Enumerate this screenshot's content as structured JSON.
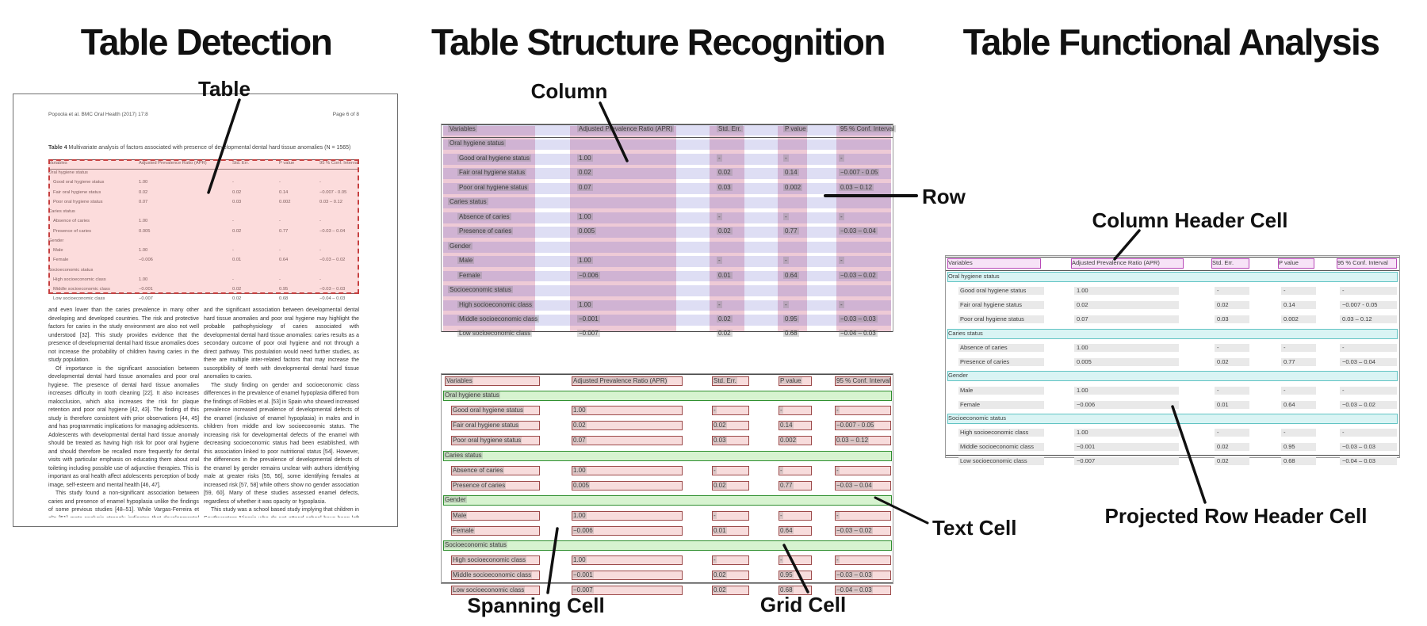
{
  "titles": {
    "left": "Table Detection",
    "middle": "Table Structure Recognition",
    "right": "Table Functional Analysis"
  },
  "annotations": {
    "table": "Table",
    "column": "Column",
    "row": "Row",
    "spanning_cell": "Spanning Cell",
    "text_cell": "Text Cell",
    "grid_cell": "Grid Cell",
    "column_header_cell": "Column Header Cell",
    "projected_row_header_cell": "Projected Row Header Cell"
  },
  "document": {
    "running_header_left": "Popoola et al. BMC Oral Health  (2017) 17:8",
    "running_header_right": "Page 6 of 8",
    "caption_label": "Table 4",
    "caption_text": " Multivariate analysis of factors associated with presence of developmental dental hard tissue anomalies (N = 1565)",
    "body_left": [
      "and even lower than the caries prevalence in many other developing and developed countries. The risk and protective factors for caries in the study environment are also not well understood [32]. This study provides evidence that the presence of developmental dental hard tissue anomalies does not increase the probability of children having caries in the study population.",
      "Of importance is the significant association between developmental dental hard tissue anomalies and poor oral hygiene. The presence of dental hard tissue anomalies increases difficulty in tooth cleaning [22]. It also increases malocclusion, which also increases the risk for plaque retention and poor oral hygiene [42, 43]. The finding of this study is therefore consistent with prior observations [44, 45] and has programmatic implications for managing adolescents. Adolescents with developmental dental hard tissue anomaly should be treated as having high risk for poor oral hygiene and should therefore be recalled more frequently for dental visits with particular emphasis on educating them about oral toileting including possible use of adjunctive therapies. This is important as oral health affect adolescents perception of body image, self-esteem and mental health [46, 47].",
      "This study found a non-significant association between caries and presence of enamel hypoplasia unlike the findings of some previous studies [48–51]. While Vargas-Ferreira et al's [51] meta-analysis strongly indicates that developmental defects of the enamel such as enamel hypoplasia is a risk factor for caries, this study finding indicates that enamel hypoplasia is not a risk factor for caries in the study population from a sub-urban developing country where the caries prevalence and severity is low [52]. However, the non-significant association between developmental dental hard tissue anomalies and caries"
    ],
    "body_right": [
      "and the significant association between developmental dental hard tissue anomalies and poor oral hygiene may highlight the probable pathophysiology of caries associated with developmental dental hard tissue anomalies: caries results as a secondary outcome of poor oral hygiene and not through a direct pathway. This postulation would need further studies, as there are multiple inter-related factors that may increase the susceptibility of teeth with developmental dental hard tissue anomalies to caries.",
      "The study finding on gender and socioeconomic class differences in the prevalence of enamel hypoplasia differed from the findings of Robles et al. [53] in Spain who showed increased prevalence increased prevalence of developmental defects of the enamel (inclusive of enamel hypoplasia) in males and in children from middle and low socioeconomic status. The increasing risk for developmental defects of the enamel with decreasing socioeconomic status had been established, with this association linked to poor nutritional status [54]. However, the differences in the prevalence of developmental defects of the enamel by gender remains unclear with authors identifying male at greater risks [55, 56], some identifying females at increased risk [57, 58] while others show no gender association [59, 60]. Many of these studies assessed enamel defects, regardless of whether it was opacity or hypoplasia.",
      "This study was a school based study implying that children in Southwestern Nigeria who do not attend school have been left out of this survey as reports show that a high proportion of children in Nigeria are out of school [61]. This limits the generalizability of the study finding. However, within the limits of the design of the study, the data still provides useful information highlighting the prevalence of developmental dental hard tissue"
    ]
  },
  "table": {
    "columns": [
      "Variables",
      "Adjusted Prevalence Ratio (APR)",
      "Std. Err.",
      "P value",
      "95 % Conf. Interval"
    ],
    "rows": [
      {
        "section": true,
        "label": "Oral hygiene status"
      },
      {
        "indent": true,
        "label": "Good oral hygiene status",
        "apr": "1.00",
        "se": "-",
        "p": "-",
        "ci": "-"
      },
      {
        "indent": true,
        "label": "Fair oral hygiene status",
        "apr": "0.02",
        "se": "0.02",
        "p": "0.14",
        "ci": "−0.007 - 0.05"
      },
      {
        "indent": true,
        "label": "Poor oral hygiene status",
        "apr": "0.07",
        "se": "0.03",
        "p": "0.002",
        "ci": "0.03 – 0.12"
      },
      {
        "section": true,
        "label": "Caries status"
      },
      {
        "indent": true,
        "label": "Absence of caries",
        "apr": "1.00",
        "se": "-",
        "p": "-",
        "ci": "-"
      },
      {
        "indent": true,
        "label": "Presence of caries",
        "apr": "0.005",
        "se": "0.02",
        "p": "0.77",
        "ci": "−0.03 – 0.04"
      },
      {
        "section": true,
        "label": "Gender"
      },
      {
        "indent": true,
        "label": "Male",
        "apr": "1.00",
        "se": "-",
        "p": "-",
        "ci": "-"
      },
      {
        "indent": true,
        "label": "Female",
        "apr": "−0.006",
        "se": "0.01",
        "p": "0.64",
        "ci": "−0.03 – 0.02"
      },
      {
        "section": true,
        "label": "Socioeconomic status"
      },
      {
        "indent": true,
        "label": "High socioeconomic class",
        "apr": "1.00",
        "se": "-",
        "p": "-",
        "ci": "-"
      },
      {
        "indent": true,
        "label": "Middle socioeconomic class",
        "apr": "−0.001",
        "se": "0.02",
        "p": "0.95",
        "ci": "−0.03 – 0.03"
      },
      {
        "indent": true,
        "label": "Low socioeconomic class",
        "apr": "−0.007",
        "se": "0.02",
        "p": "0.68",
        "ci": "−0.04 – 0.03"
      }
    ]
  },
  "colors": {
    "detection_fill": "rgba(243,120,120,0.26)",
    "detection_border": "#c64040",
    "column_band": "rgba(200,80,120,0.30)",
    "row_band": "rgba(90,90,200,0.20)",
    "cell_fill": "rgba(230,140,140,0.30)",
    "cell_border": "#9c4a4a",
    "spanning_fill": "rgba(140,220,120,0.35)",
    "spanning_border": "#2f8f2f",
    "header_cell_fill": "#f7e3f7",
    "header_cell_border": "#b84ab8",
    "proj_row_fill": "#d9f4f4",
    "proj_row_border": "#62c4c4",
    "value_bar": "#e9e9e9",
    "line_color": "#111111"
  }
}
